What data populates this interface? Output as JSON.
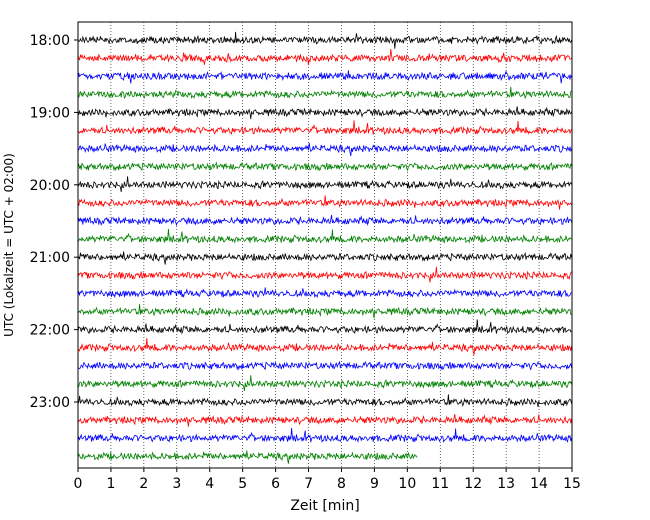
{
  "chart_data": {
    "type": "line",
    "title": "",
    "xlabel": "Zeit  [min]",
    "ylabel": "UTC (Lokalzeit = UTC + 02:00)",
    "xlim": [
      0,
      15
    ],
    "x_ticks": [
      0,
      1,
      2,
      3,
      4,
      5,
      6,
      7,
      8,
      9,
      10,
      11,
      12,
      13,
      14,
      15
    ],
    "y_tick_labels": [
      "18:00",
      "19:00",
      "20:00",
      "21:00",
      "22:00",
      "23:00"
    ],
    "y_tick_rows": [
      0,
      4,
      8,
      12,
      16,
      20
    ],
    "grid": "vertical dotted",
    "row_colors": [
      "#000000",
      "#ff0000",
      "#0000ff",
      "#008000"
    ],
    "rows": [
      {
        "start": "18:00",
        "end_minute": 15
      },
      {
        "start": "18:15",
        "end_minute": 15
      },
      {
        "start": "18:30",
        "end_minute": 15
      },
      {
        "start": "18:45",
        "end_minute": 15
      },
      {
        "start": "19:00",
        "end_minute": 15
      },
      {
        "start": "19:15",
        "end_minute": 15
      },
      {
        "start": "19:30",
        "end_minute": 15
      },
      {
        "start": "19:45",
        "end_minute": 15
      },
      {
        "start": "20:00",
        "end_minute": 15
      },
      {
        "start": "20:15",
        "end_minute": 15
      },
      {
        "start": "20:30",
        "end_minute": 15
      },
      {
        "start": "20:45",
        "end_minute": 15
      },
      {
        "start": "21:00",
        "end_minute": 15
      },
      {
        "start": "21:15",
        "end_minute": 15
      },
      {
        "start": "21:30",
        "end_minute": 15
      },
      {
        "start": "21:45",
        "end_minute": 15
      },
      {
        "start": "22:00",
        "end_minute": 15
      },
      {
        "start": "22:15",
        "end_minute": 15
      },
      {
        "start": "22:30",
        "end_minute": 15
      },
      {
        "start": "22:45",
        "end_minute": 15
      },
      {
        "start": "23:00",
        "end_minute": 15
      },
      {
        "start": "23:15",
        "end_minute": 15
      },
      {
        "start": "23:30",
        "end_minute": 15
      },
      {
        "start": "23:45",
        "end_minute": 10.3
      }
    ]
  }
}
